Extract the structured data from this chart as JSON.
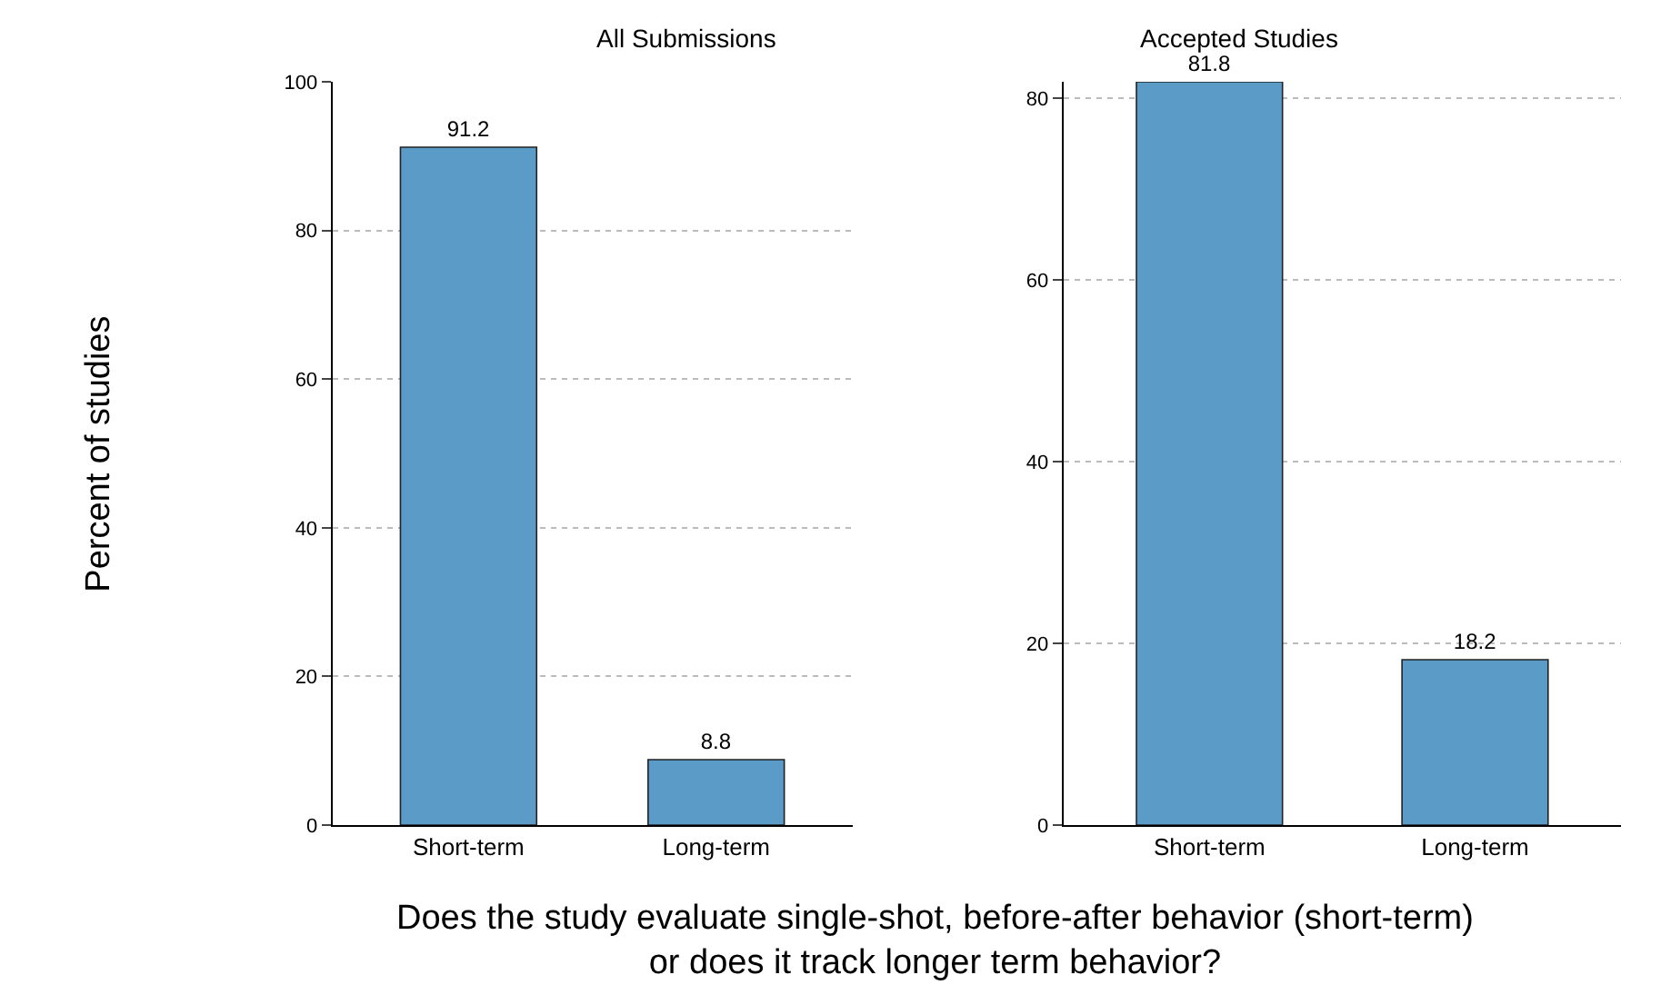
{
  "chart_data": [
    {
      "type": "bar",
      "title": "All Submissions",
      "ylabel": "Percent of studies",
      "xlabel": "Does the study evaluate single-shot, before-after behavior (short-term)\nor does it track longer term behavior?",
      "categories": [
        "Short-term",
        "Long-term"
      ],
      "values": [
        91.2,
        8.8
      ],
      "color": "#5a9bc8",
      "ylim": [
        0,
        100
      ],
      "yticks": [
        0,
        20,
        40,
        60,
        80,
        100
      ],
      "grid": "y",
      "data_labels": true
    },
    {
      "type": "bar",
      "title": "Accepted Studies",
      "categories": [
        "Short-term",
        "Long-term"
      ],
      "values": [
        81.8,
        18.2
      ],
      "color": "#5a9bc8",
      "ylim": [
        0,
        81.8
      ],
      "yticks": [
        0,
        20,
        40,
        60,
        80
      ],
      "grid": "y",
      "data_labels": true
    }
  ]
}
